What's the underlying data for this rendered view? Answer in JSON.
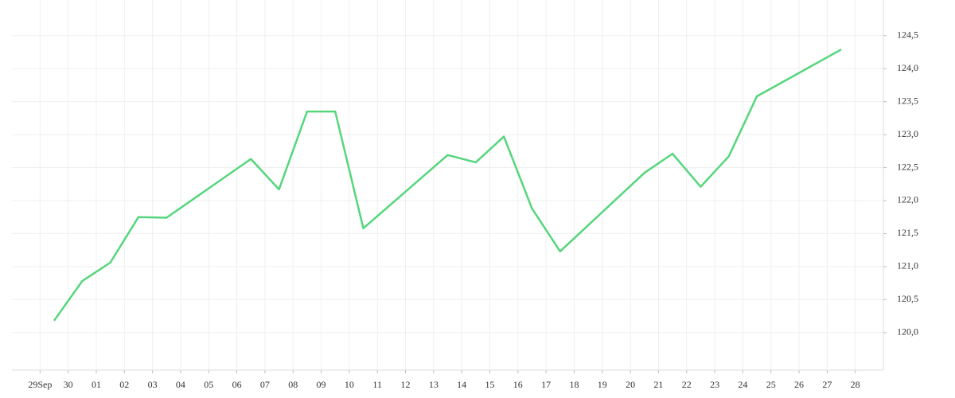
{
  "chart_data": {
    "type": "line",
    "x": [
      0.5,
      1.5,
      2.5,
      3.5,
      4.5,
      7.5,
      8.5,
      9.5,
      10.5,
      11.5,
      14.5,
      15.5,
      16.5,
      17.5,
      18.5,
      21.5,
      22.5,
      23.5,
      24.5,
      25.5,
      28.5
    ],
    "values": [
      120.18,
      120.78,
      121.06,
      121.75,
      121.74,
      122.63,
      122.17,
      123.35,
      123.35,
      121.58,
      122.69,
      122.58,
      122.97,
      121.88,
      121.23,
      122.42,
      122.71,
      122.21,
      122.67,
      123.58,
      124.29
    ],
    "color": "#55d67c",
    "xlim": [
      -1,
      30
    ],
    "xticks": [
      {
        "value": 0,
        "label": "29Sep"
      },
      {
        "value": 1,
        "label": "30"
      },
      {
        "value": 2,
        "label": "01"
      },
      {
        "value": 3,
        "label": "02"
      },
      {
        "value": 4,
        "label": "03"
      },
      {
        "value": 5,
        "label": "04"
      },
      {
        "value": 6,
        "label": "05"
      },
      {
        "value": 7,
        "label": "06"
      },
      {
        "value": 8,
        "label": "07"
      },
      {
        "value": 9,
        "label": "08"
      },
      {
        "value": 10,
        "label": "09"
      },
      {
        "value": 11,
        "label": "10"
      },
      {
        "value": 12,
        "label": "11"
      },
      {
        "value": 13,
        "label": "12"
      },
      {
        "value": 14,
        "label": "13"
      },
      {
        "value": 15,
        "label": "14"
      },
      {
        "value": 16,
        "label": "15"
      },
      {
        "value": 17,
        "label": "16"
      },
      {
        "value": 18,
        "label": "17"
      },
      {
        "value": 19,
        "label": "18"
      },
      {
        "value": 20,
        "label": "19"
      },
      {
        "value": 21,
        "label": "20"
      },
      {
        "value": 22,
        "label": "21"
      },
      {
        "value": 23,
        "label": "22"
      },
      {
        "value": 24,
        "label": "23"
      },
      {
        "value": 25,
        "label": "24"
      },
      {
        "value": 26,
        "label": "25"
      },
      {
        "value": 27,
        "label": "26"
      },
      {
        "value": 28,
        "label": "27"
      },
      {
        "value": 29,
        "label": "28"
      }
    ],
    "ylim": [
      119.43,
      125.04
    ],
    "yticks": [
      {
        "value": 120.0,
        "label": "120,0"
      },
      {
        "value": 120.5,
        "label": "120,5"
      },
      {
        "value": 121.0,
        "label": "121,0"
      },
      {
        "value": 121.5,
        "label": "121,5"
      },
      {
        "value": 122.0,
        "label": "122,0"
      },
      {
        "value": 122.5,
        "label": "122,5"
      },
      {
        "value": 123.0,
        "label": "123,0"
      },
      {
        "value": 123.5,
        "label": "123,5"
      },
      {
        "value": 124.0,
        "label": "124,0"
      },
      {
        "value": 124.5,
        "label": "124,5"
      }
    ],
    "grid": true
  }
}
